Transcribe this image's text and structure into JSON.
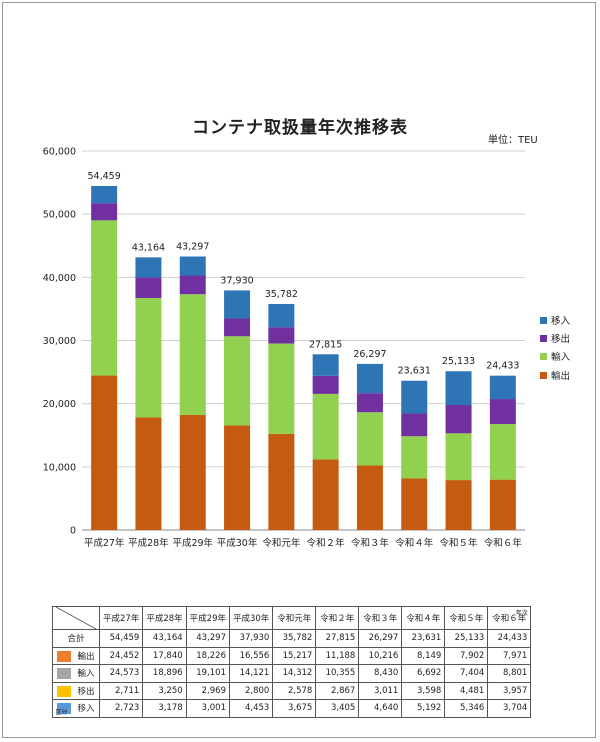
{
  "title": "コンテナ取扱量年次推移表",
  "unit": "単位：TEU",
  "chart_data": {
    "type": "bar",
    "stacked": true,
    "title": "コンテナ取扱量年次推移表",
    "categories": [
      "平成27年",
      "平成28年",
      "平成29年",
      "平成30年",
      "令和元年",
      "令和２年",
      "令和３年",
      "令和４年",
      "令和５年",
      "令和６年"
    ],
    "series": [
      {
        "name": "輸出",
        "color": "#C55A11",
        "values": [
          24452,
          17840,
          18226,
          16556,
          15217,
          11188,
          10216,
          8149,
          7902,
          7971
        ]
      },
      {
        "name": "輸入",
        "color": "#92D050",
        "values": [
          24573,
          18896,
          19101,
          14121,
          14312,
          10355,
          8430,
          6692,
          7404,
          8801
        ]
      },
      {
        "name": "移出",
        "color": "#7030A0",
        "values": [
          2711,
          3250,
          2969,
          2800,
          2578,
          2867,
          3011,
          3598,
          4481,
          3957
        ]
      },
      {
        "name": "移入",
        "color": "#2E75B6",
        "values": [
          2723,
          3178,
          3001,
          4453,
          3675,
          3405,
          4640,
          5192,
          5346,
          3704
        ]
      }
    ],
    "totals": [
      "54,459",
      "43,164",
      "43,297",
      "37,930",
      "35,782",
      "27,815",
      "26,297",
      "23,631",
      "25,133",
      "24,433"
    ],
    "ylim": [
      0,
      60000
    ],
    "yticks": [
      "0",
      "10,000",
      "20,000",
      "30,000",
      "40,000",
      "50,000",
      "60,000"
    ],
    "grid": true,
    "legend_position": "right"
  },
  "table": {
    "corner_top": "年次",
    "corner_bottom": "区分",
    "years": [
      "平成27年",
      "平成28年",
      "平成29年",
      "平成30年",
      "令和元年",
      "令和２年",
      "令和３年",
      "令和４年",
      "令和５年",
      "令和６年"
    ],
    "rows": [
      {
        "label": "合計",
        "swatch": "",
        "values": [
          "54,459",
          "43,164",
          "43,297",
          "37,930",
          "35,782",
          "27,815",
          "26,297",
          "23,631",
          "25,133",
          "24,433"
        ]
      },
      {
        "label": "輸出",
        "swatch": "#ED7D31",
        "values": [
          "24,452",
          "17,840",
          "18,226",
          "16,556",
          "15,217",
          "11,188",
          "10,216",
          "8,149",
          "7,902",
          "7,971"
        ]
      },
      {
        "label": "輸入",
        "swatch": "#A5A5A5",
        "values": [
          "24,573",
          "18,896",
          "19,101",
          "14,121",
          "14,312",
          "10,355",
          "8,430",
          "6,692",
          "7,404",
          "8,801"
        ]
      },
      {
        "label": "移出",
        "swatch": "#FFC000",
        "values": [
          "2,711",
          "3,250",
          "2,969",
          "2,800",
          "2,578",
          "2,867",
          "3,011",
          "3,598",
          "4,481",
          "3,957"
        ]
      },
      {
        "label": "移入",
        "swatch": "#5B9BD5",
        "values": [
          "2,723",
          "3,178",
          "3,001",
          "4,453",
          "3,675",
          "3,405",
          "4,640",
          "5,192",
          "5,346",
          "3,704"
        ]
      }
    ]
  }
}
